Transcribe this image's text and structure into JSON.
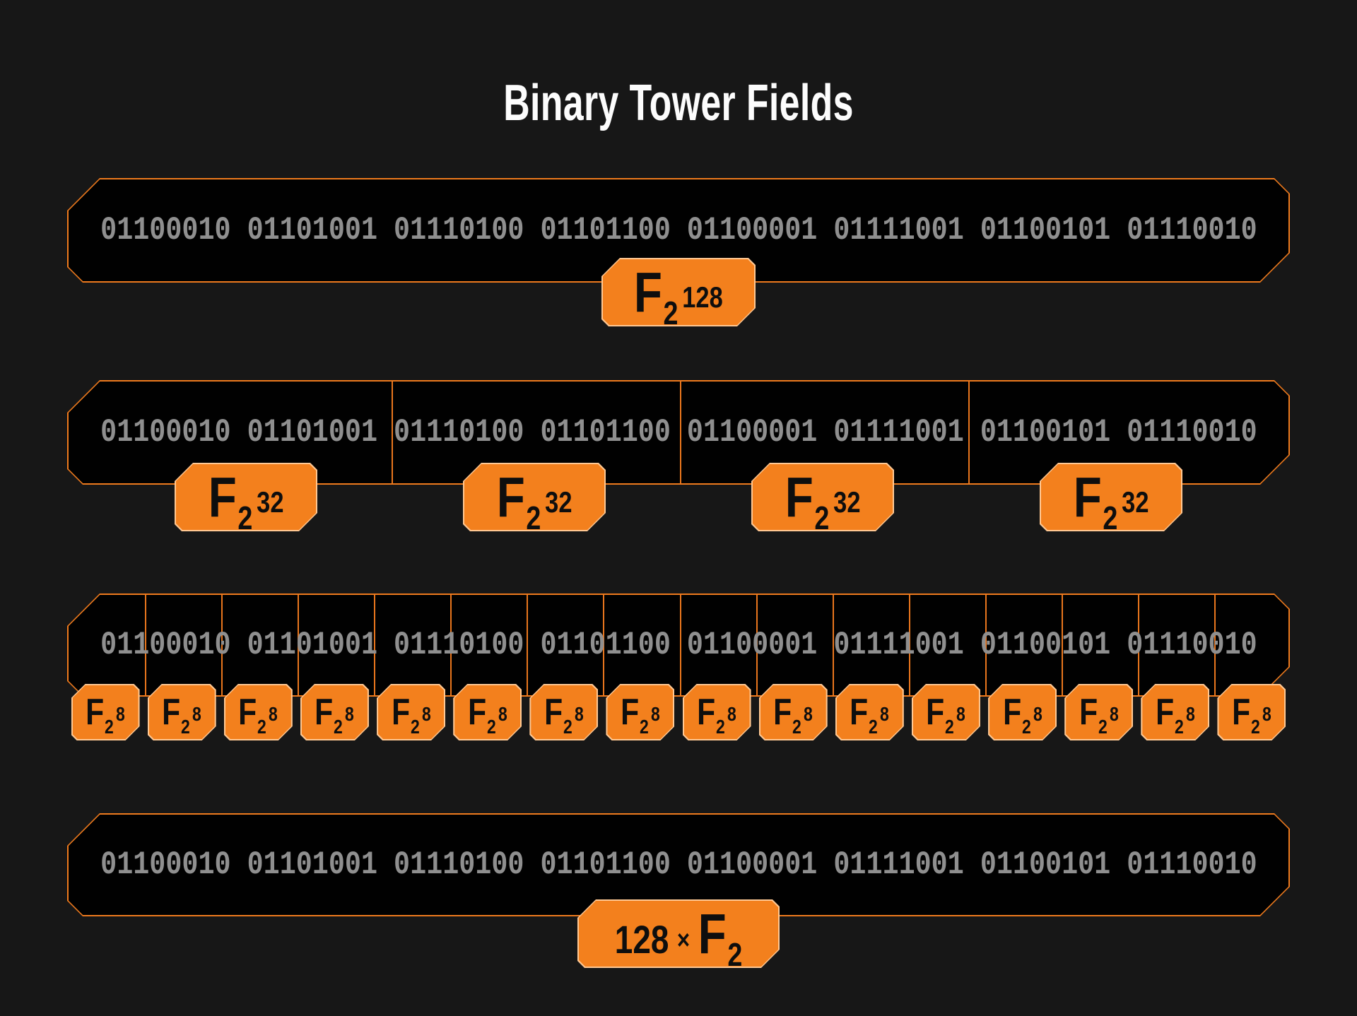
{
  "title": "Binary Tower Fields",
  "colors": {
    "background": "#171717",
    "box_fill": "#010101",
    "box_border": "#ee7a1d",
    "divider": "#e9761d",
    "badge_fill": "#f3801d",
    "badge_border": "#ffc893",
    "badge_text": "#0e0e0e",
    "binary_text": "#8f8f8f",
    "title_text": "#fcfcfc"
  },
  "rows": [
    {
      "id": "f2-128",
      "cells": 1,
      "binary": "01100010 01101001 01110100 01101100 01100001 01111001 01100101 01110010",
      "badges": [
        {
          "base": "F",
          "sub": "2",
          "sup": "128"
        }
      ]
    },
    {
      "id": "f2-32",
      "cells": 4,
      "binary": "01100010 01101001 01110100 01101100 01100001 01111001 01100101 01110010",
      "badges": [
        {
          "base": "F",
          "sub": "2",
          "sup": "32"
        },
        {
          "base": "F",
          "sub": "2",
          "sup": "32"
        },
        {
          "base": "F",
          "sub": "2",
          "sup": "32"
        },
        {
          "base": "F",
          "sub": "2",
          "sup": "32"
        }
      ]
    },
    {
      "id": "f2-8",
      "cells": 16,
      "binary": "01100010 01101001 01110100 01101100 01100001 01111001 01100101 01110010",
      "badges": [
        {
          "base": "F",
          "sub": "2",
          "sup": "8"
        },
        {
          "base": "F",
          "sub": "2",
          "sup": "8"
        },
        {
          "base": "F",
          "sub": "2",
          "sup": "8"
        },
        {
          "base": "F",
          "sub": "2",
          "sup": "8"
        },
        {
          "base": "F",
          "sub": "2",
          "sup": "8"
        },
        {
          "base": "F",
          "sub": "2",
          "sup": "8"
        },
        {
          "base": "F",
          "sub": "2",
          "sup": "8"
        },
        {
          "base": "F",
          "sub": "2",
          "sup": "8"
        },
        {
          "base": "F",
          "sub": "2",
          "sup": "8"
        },
        {
          "base": "F",
          "sub": "2",
          "sup": "8"
        },
        {
          "base": "F",
          "sub": "2",
          "sup": "8"
        },
        {
          "base": "F",
          "sub": "2",
          "sup": "8"
        },
        {
          "base": "F",
          "sub": "2",
          "sup": "8"
        },
        {
          "base": "F",
          "sub": "2",
          "sup": "8"
        },
        {
          "base": "F",
          "sub": "2",
          "sup": "8"
        },
        {
          "base": "F",
          "sub": "2",
          "sup": "8"
        }
      ]
    },
    {
      "id": "128-f2",
      "cells": 1,
      "binary": "01100010 01101001 01110100 01101100 01100001 01111001 01100101 01110010",
      "badges": [
        {
          "num": "128",
          "times": "×",
          "base": "F",
          "sub": "2"
        }
      ]
    }
  ]
}
